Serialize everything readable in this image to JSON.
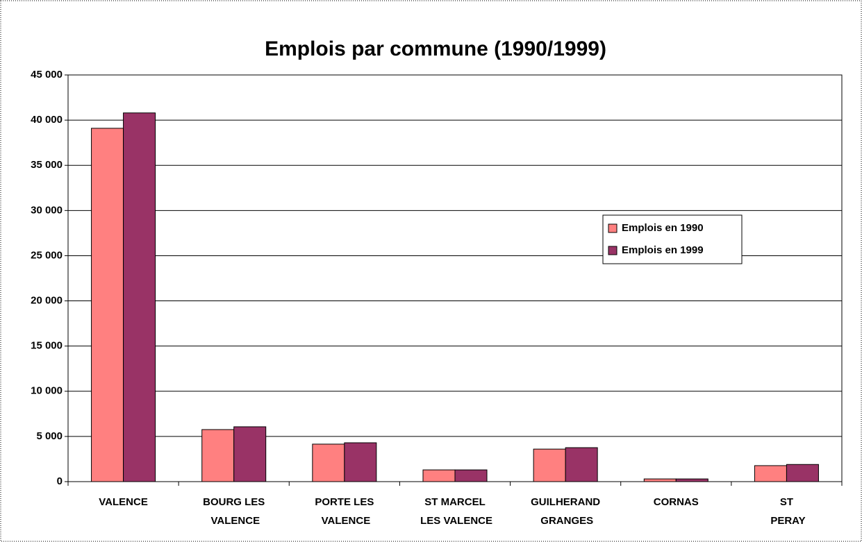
{
  "chart_data": {
    "type": "bar",
    "title": "Emplois par commune (1990/1999)",
    "categories": [
      "VALENCE",
      "BOURG LES VALENCE",
      "PORTE LES VALENCE",
      "ST MARCEL LES VALENCE",
      "GUILHERAND GRANGES",
      "CORNAS",
      "ST PERAY"
    ],
    "series": [
      {
        "name": "Emplois en 1990",
        "color": "#ff8080",
        "values": [
          39100,
          5760,
          4150,
          1300,
          3600,
          300,
          1770
        ]
      },
      {
        "name": "Emplois en 1999",
        "color": "#993366",
        "values": [
          40800,
          6070,
          4300,
          1300,
          3760,
          300,
          1900
        ]
      }
    ],
    "ylim": [
      0,
      45000
    ],
    "yticks": [
      0,
      {
        "value": 5000,
        "label": "5 000"
      },
      {
        "value": 10000,
        "label": "10 000"
      },
      {
        "value": 15000,
        "label": "15 000"
      },
      {
        "value": 20000,
        "label": "20 000"
      },
      {
        "value": 25000,
        "label": "25 000"
      },
      {
        "value": 30000,
        "label": "30 000"
      },
      {
        "value": 35000,
        "label": "35 000"
      },
      {
        "value": 40000,
        "label": "40 000"
      },
      {
        "value": 45000,
        "label": "45 000"
      }
    ],
    "grid": true,
    "legend": "right"
  }
}
